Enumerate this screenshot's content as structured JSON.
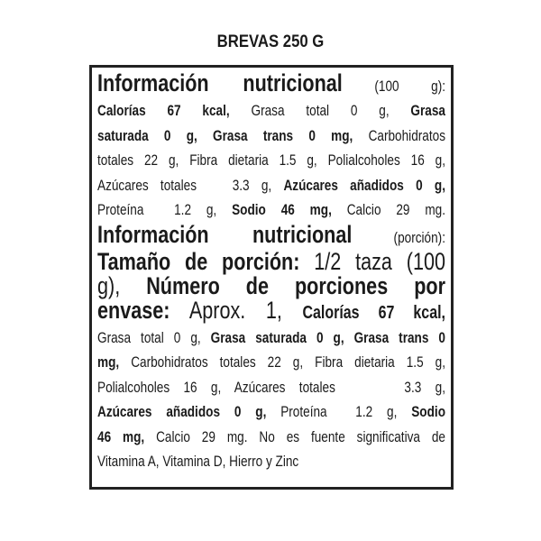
{
  "title": "BREVAS 250 G",
  "lines": [
    {
      "size": "big",
      "segments": [
        {
          "t": "Información nutricional",
          "b": true
        },
        {
          "t": " (100 g):",
          "b": false,
          "xs": true
        }
      ]
    },
    {
      "size": "sm",
      "segments": [
        {
          "t": "Calorías 67 kcal,",
          "b": true
        },
        {
          "t": " Grasa total 0 g, ",
          "b": false
        },
        {
          "t": "Grasa",
          "b": true
        }
      ]
    },
    {
      "size": "sm",
      "segments": [
        {
          "t": "saturada 0 g, Grasa trans 0 mg,",
          "b": true
        },
        {
          "t": " Carbohidratos",
          "b": false
        }
      ]
    },
    {
      "size": "sm",
      "segments": [
        {
          "t": "totales 22 g, Fibra dietaria 1.5 g, Polialcoholes 16 g,",
          "b": false
        }
      ]
    },
    {
      "size": "sm",
      "segments": [
        {
          "t": "Azúcares totales   3.3 g, ",
          "b": false
        },
        {
          "t": "Azúcares añadidos 0 g,",
          "b": true
        }
      ]
    },
    {
      "size": "sm",
      "segments": [
        {
          "t": "Proteína  1.2 g, ",
          "b": false
        },
        {
          "t": "Sodio 46 mg,",
          "b": true
        },
        {
          "t": " Calcio 29 mg.",
          "b": false
        }
      ]
    },
    {
      "size": "big",
      "segments": [
        {
          "t": "Información nutricional",
          "b": true
        },
        {
          "t": " (porción):",
          "b": false,
          "xs": true
        }
      ]
    },
    {
      "size": "big",
      "segments": [
        {
          "t": "Tamaño de porción:",
          "b": true
        },
        {
          "t": " 1/2 taza (100",
          "b": false
        }
      ]
    },
    {
      "size": "big",
      "segments": [
        {
          "t": "g), ",
          "b": false
        },
        {
          "t": "Número de porciones por",
          "b": true
        }
      ]
    },
    {
      "size": "big",
      "segments": [
        {
          "t": "envase:",
          "b": true
        },
        {
          "t": " Aprox. 1, ",
          "b": false
        },
        {
          "t": "Calorías 67 kcal,",
          "b": true,
          "smb": true
        }
      ]
    },
    {
      "size": "sm",
      "segments": [
        {
          "t": "Grasa total 0 g, ",
          "b": false
        },
        {
          "t": "Grasa saturada 0 g, Grasa trans 0",
          "b": true
        }
      ]
    },
    {
      "size": "sm",
      "segments": [
        {
          "t": "mg,",
          "b": true
        },
        {
          "t": " Carbohidratos totales 22 g, Fibra dietaria 1.5 g,",
          "b": false
        }
      ]
    },
    {
      "size": "sm",
      "segments": [
        {
          "t": "Polialcoholes 16 g, Azúcares totales     3.3 g,",
          "b": false
        }
      ]
    },
    {
      "size": "sm",
      "segments": [
        {
          "t": "Azúcares añadidos 0 g,",
          "b": true
        },
        {
          "t": " Proteína  1.2 g, ",
          "b": false
        },
        {
          "t": "Sodio",
          "b": true
        }
      ]
    },
    {
      "size": "sm",
      "segments": [
        {
          "t": "46 mg,",
          "b": true
        },
        {
          "t": " Calcio 29 mg. No es fuente significativa de",
          "b": false
        }
      ]
    },
    {
      "size": "sm",
      "last": true,
      "segments": [
        {
          "t": "Vitamina A, Vitamina D, Hierro y Zinc",
          "b": false
        }
      ]
    }
  ]
}
